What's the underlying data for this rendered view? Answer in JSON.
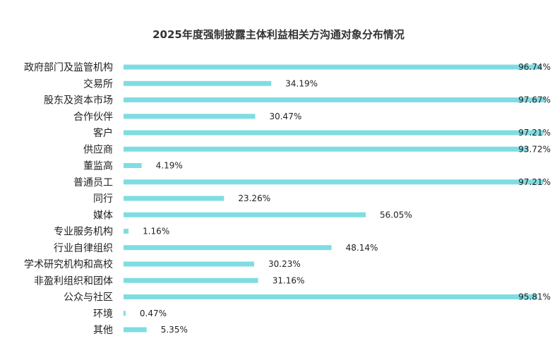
{
  "colors": {
    "bar": "#7fdde2",
    "text": "#222222",
    "title": "#333333"
  },
  "chart_data": {
    "type": "bar",
    "orientation": "horizontal",
    "title": "2025年度强制披露主体利益相关方沟通对象分布情况",
    "categories": [
      "政府部门及监管机构",
      "交易所",
      "股东及资本市场",
      "合作伙伴",
      "客户",
      "供应商",
      "董监高",
      "普通员工",
      "同行",
      "媒体",
      "专业服务机构",
      "行业自律组织",
      "学术研究机构和高校",
      "非盈利组织和团体",
      "公众与社区",
      "环境",
      "其他"
    ],
    "values": [
      96.74,
      34.19,
      97.67,
      30.47,
      97.21,
      93.72,
      4.19,
      97.21,
      23.26,
      56.05,
      1.16,
      48.14,
      30.23,
      31.16,
      95.81,
      0.47,
      5.35
    ],
    "value_labels": [
      "96.74%",
      "34.19%",
      "97.67%",
      "30.47%",
      "97.21%",
      "93.72%",
      "4.19%",
      "97.21%",
      "23.26%",
      "56.05%",
      "1.16%",
      "48.14%",
      "30.23%",
      "31.16%",
      "95.81%",
      "0.47%",
      "5.35%"
    ],
    "unit": "%",
    "xlim": [
      0,
      100
    ],
    "grid": false,
    "legend": "none"
  }
}
